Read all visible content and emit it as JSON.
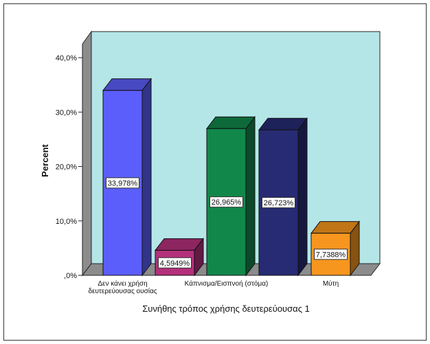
{
  "chart_data": {
    "type": "bar",
    "style": "3d-bar",
    "categories": [
      "Δεν κάνει χρήση δευτερεύουσας ουσίας",
      "",
      "Κάπνισμα/Εισπνοή (στόμα)",
      "",
      "Μύτη"
    ],
    "xtick_lines": [
      [
        "Δεν κάνει χρήση",
        "δευτερεύουσας ουσίας"
      ],
      [],
      [
        "Κάπνισμα/Εισπνοή (στόμα)"
      ],
      [],
      [
        "Μύτη"
      ]
    ],
    "values": [
      33.978,
      4.5949,
      26.965,
      26.723,
      7.7388
    ],
    "data_labels": [
      "33,978%",
      "4,5949%",
      "26,965%",
      "26,723%",
      "7,7388%"
    ],
    "bar_colors": [
      "#5b5efa",
      "#b3307b",
      "#12874a",
      "#272b73",
      "#f6961e"
    ],
    "xlabel": "Συνήθης τρόπος χρήσης δευτερεύουσας 1",
    "ylabel": "Percent",
    "ylim": [
      0,
      40
    ],
    "yticks": [
      0,
      10,
      20,
      30,
      40
    ],
    "ytick_labels": [
      ",0%",
      "10,0%",
      "20,0%",
      "30,0%",
      "40,0%"
    ],
    "grid": false,
    "background_color": "#b4e6e8",
    "legend": "none"
  }
}
